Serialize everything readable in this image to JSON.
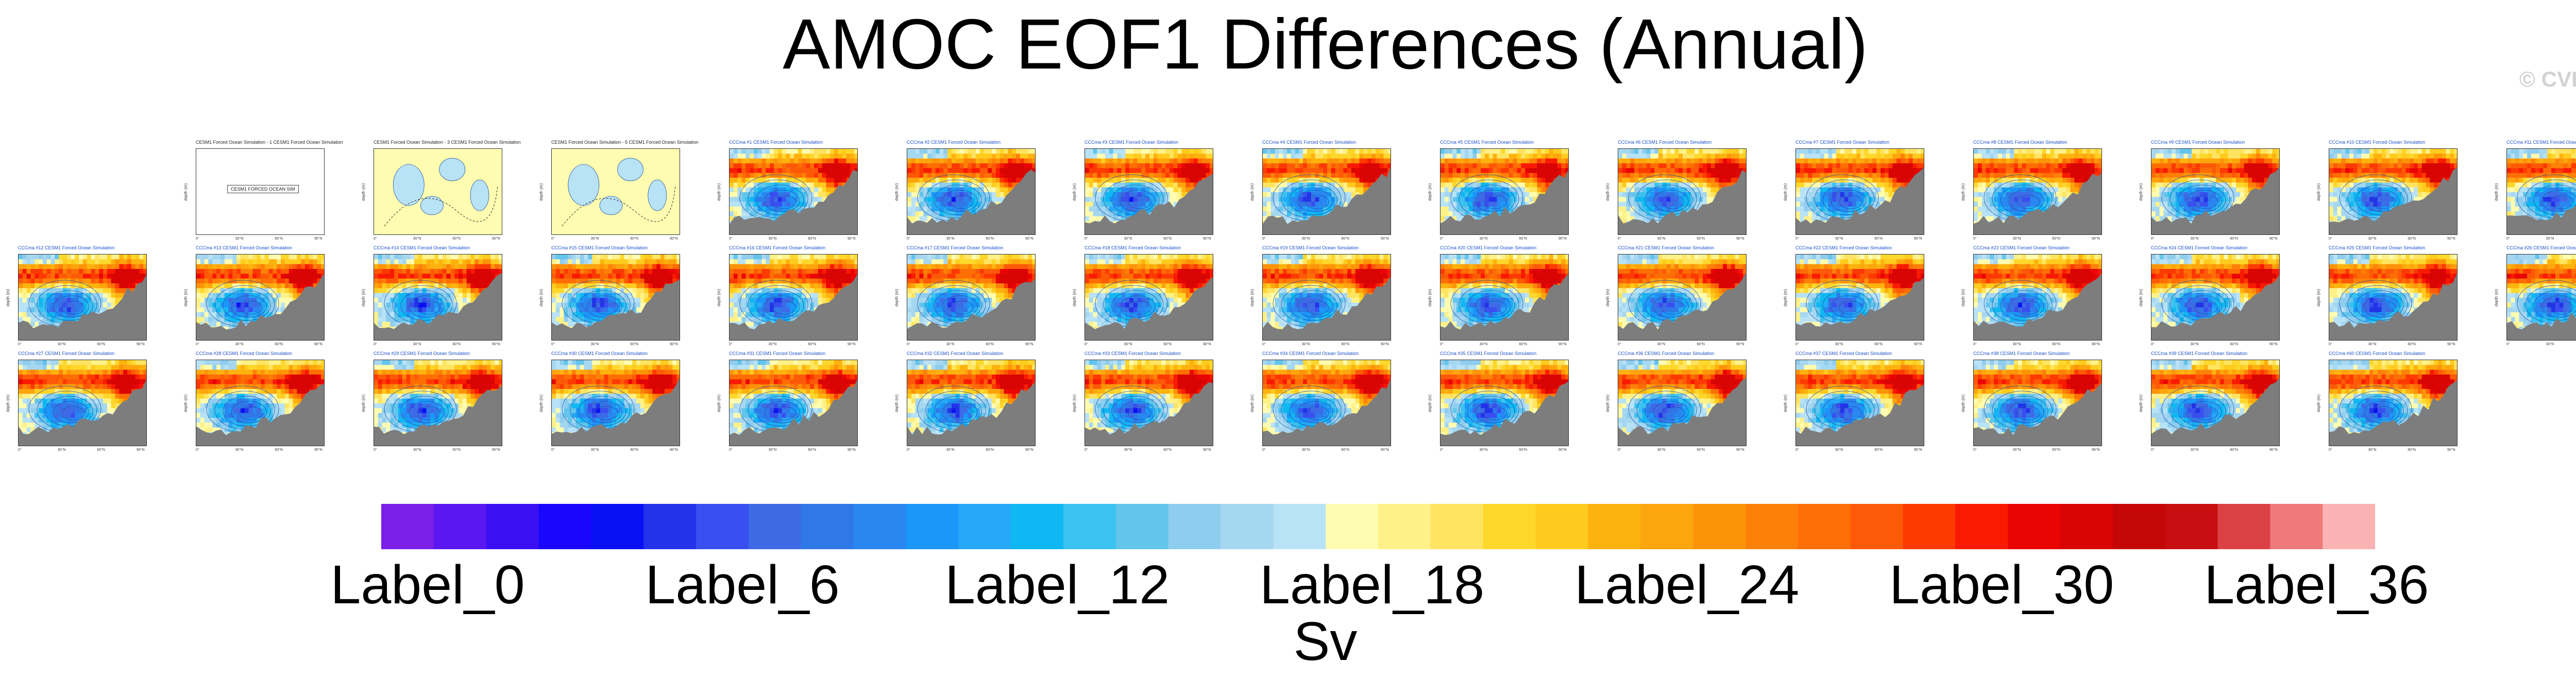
{
  "title": "AMOC EOF1 Differences (Annual)",
  "watermark": "© CVDP-LE",
  "chart_data": {
    "type": "heatmap",
    "title": "AMOC EOF1 Differences (Annual)",
    "units": "Sv",
    "colorbar": {
      "colors": [
        "#7a1ee8",
        "#5a17f0",
        "#3a10f2",
        "#1a06fc",
        "#0a10f4",
        "#2233ea",
        "#3a4ff0",
        "#3f6ae6",
        "#2f78e8",
        "#2a86f0",
        "#1a97f8",
        "#26a8f6",
        "#0fb8f2",
        "#3ac2f0",
        "#63c5ec",
        "#8fcdee",
        "#a6d7f0",
        "#b8e2f6",
        "#fefcb0",
        "#fef188",
        "#fee460",
        "#fed72c",
        "#fecb1e",
        "#feb20e",
        "#fda50c",
        "#fd9408",
        "#fd8108",
        "#fd6e04",
        "#fd5a08",
        "#fd3a02",
        "#f91a02",
        "#e80504",
        "#d80504",
        "#c50606",
        "#c80e10",
        "#dc4146",
        "#ee7a7c",
        "#fbb2b2"
      ],
      "tick_labels": [
        "Label_0",
        "Label_6",
        "Label_12",
        "Label_18",
        "Label_24",
        "Label_30",
        "Label_36"
      ],
      "tick_positions": [
        0,
        6,
        12,
        18,
        24,
        30,
        36
      ]
    },
    "panel_grid": {
      "rows": [
        [
          "blank",
          "CESM1 Forced Ocean Simulation - 1 CESM1 Forced Ocean Simulation",
          "CESM1 Forced Ocean Simulation - 3 CESM1 Forced Ocean Simulation",
          "CESM1 Forced Ocean Simulation - 5 CESM1 Forced Ocean Simulation",
          "CCCma #1 CESM1 Forced Ocean Simulation",
          "CCCma #2 CESM1 Forced Ocean Simulation",
          "CCCma #3 CESM1 Forced Ocean Simulation",
          "CCCma #4 CESM1 Forced Ocean Simulation",
          "CCCma #5 CESM1 Forced Ocean Simulation",
          "CCCma #6 CESM1 Forced Ocean Simulation",
          "CCCma #7 CESM1 Forced Ocean Simulation",
          "CCCma #8 CESM1 Forced Ocean Simulation",
          "CCCma #9 CESM1 Forced Ocean Simulation",
          "CCCma #10 CESM1 Forced Ocean Simulation",
          "CCCma #11 CESM1 Forced Ocean Simulation"
        ],
        [
          "CCCma #12 CESM1 Forced Ocean Simulation",
          "CCCma #13 CESM1 Forced Ocean Simulation",
          "CCCma #14 CESM1 Forced Ocean Simulation",
          "CCCma #15 CESM1 Forced Ocean Simulation",
          "CCCma #16 CESM1 Forced Ocean Simulation",
          "CCCma #17 CESM1 Forced Ocean Simulation",
          "CCCma #18 CESM1 Forced Ocean Simulation",
          "CCCma #19 CESM1 Forced Ocean Simulation",
          "CCCma #20 CESM1 Forced Ocean Simulation",
          "CCCma #21 CESM1 Forced Ocean Simulation",
          "CCCma #22 CESM1 Forced Ocean Simulation",
          "CCCma #23 CESM1 Forced Ocean Simulation",
          "CCCma #24 CESM1 Forced Ocean Simulation",
          "CCCma #25 CESM1 Forced Ocean Simulation",
          "CCCma #26 CESM1 Forced Ocean Simulation"
        ],
        [
          "CCCma #27 CESM1 Forced Ocean Simulation",
          "CCCma #28 CESM1 Forced Ocean Simulation",
          "CCCma #29 CESM1 Forced Ocean Simulation",
          "CCCma #30 CESM1 Forced Ocean Simulation",
          "CCCma #31 CESM1 Forced Ocean Simulation",
          "CCCma #32 CESM1 Forced Ocean Simulation",
          "CCCma #33 CESM1 Forced Ocean Simulation",
          "CCCma #34 CESM1 Forced Ocean Simulation",
          "CCCma #35 CESM1 Forced Ocean Simulation",
          "CCCma #36 CESM1 Forced Ocean Simulation",
          "CCCma #37 CESM1 Forced Ocean Simulation",
          "CCCma #38 CESM1 Forced Ocean Simulation",
          "CCCma #39 CESM1 Forced Ocean Simulation",
          "CCCma #40 CESM1 Forced Ocean Simulation"
        ]
      ],
      "blank_message": "CESM1 FORCED OCEAN SIM",
      "y_axis_label": "depth (m)",
      "x_tick_labels": [
        "0°",
        "30°N",
        "60°N",
        "90°N"
      ],
      "y_tick_labels": [
        "0",
        "1000",
        "2000",
        "3000",
        "4000",
        "5000"
      ]
    }
  }
}
